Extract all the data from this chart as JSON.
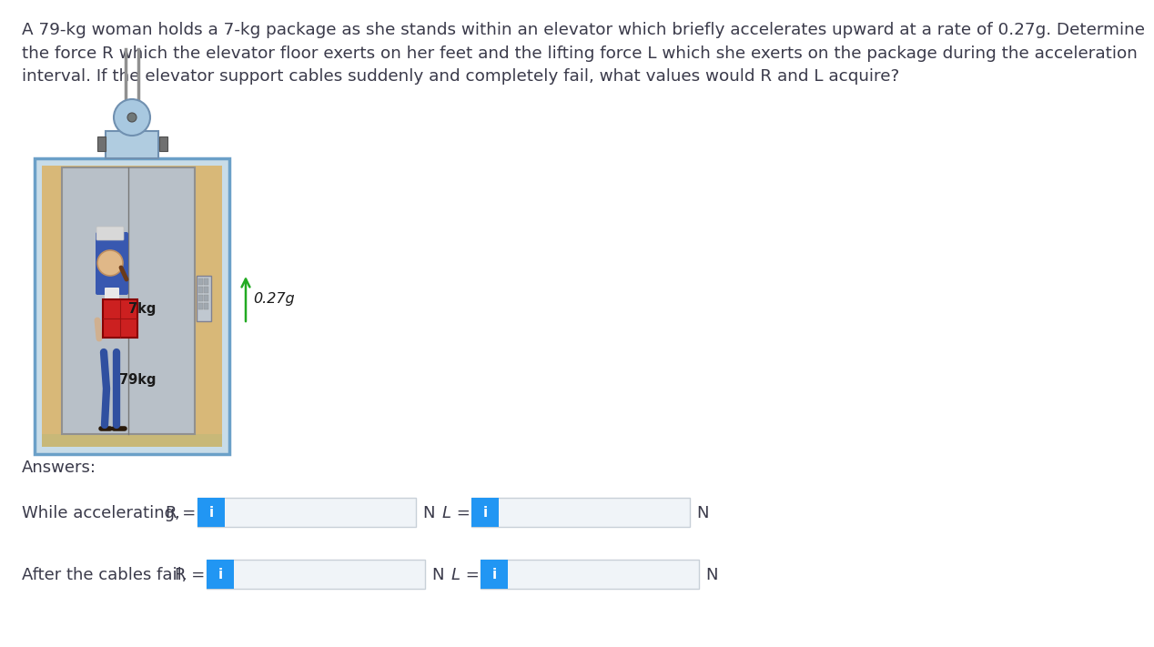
{
  "title_text": "A 79-kg woman holds a 7-kg package as she stands within an elevator which briefly accelerates upward at a rate of 0.27g. Determine\nthe force R which the elevator floor exerts on her feet and the lifting force L which she exerts on the package during the acceleration\ninterval. If the elevator support cables suddenly and completely fail, what values would R and L acquire?",
  "answers_label": "Answers:",
  "row1_label": "While accelerating,",
  "row2_label": "After the cables fail,",
  "button_color": "#2196F3",
  "button_text": "i",
  "button_text_color": "#ffffff",
  "input_bg": "#f0f4f8",
  "input_border": "#c8d0d8",
  "bg_color": "#ffffff",
  "text_color": "#3a3a4a",
  "font_size_title": 13.2,
  "font_size_body": 13,
  "arrow_color": "#22aa22",
  "arrow_label": "0.27g",
  "pkg_label": "7kg",
  "woman_label": "79kg",
  "elev_outer_border": "#6ba0c8",
  "elev_outer_fill": "#c8dce8",
  "elev_inner_fill": "#d8b878",
  "elev_door_fill": "#b8c0c8",
  "elev_door_border": "#909090",
  "motor_fill": "#b0cce0",
  "motor_border": "#7090b0",
  "pulley_fill": "#a8c8e0",
  "cable_color": "#909090",
  "bracket_fill": "#707070",
  "panel_fill": "#c0c8d0",
  "panel_border": "#808090",
  "floor_color": "#c8b878"
}
